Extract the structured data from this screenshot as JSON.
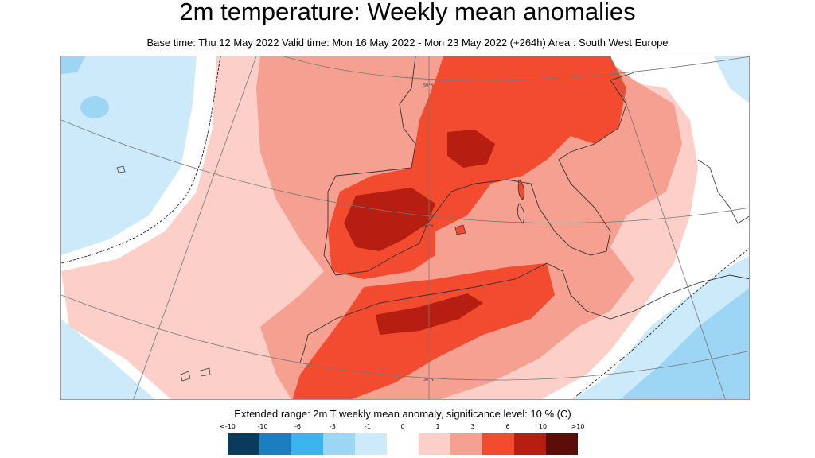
{
  "header": {
    "title": "2m temperature: Weekly mean anomalies",
    "subtitle": "Base time: Thu 12 May 2022 Valid time: Mon 16 May 2022 - Mon 23 May 2022 (+264h) Area : South West Europe"
  },
  "map": {
    "grid_labels": [
      "50°N",
      "40°N",
      "30°N"
    ]
  },
  "legend": {
    "title": "Extended range: 2m T weekly mean anomaly, significance level: 10 % (C)",
    "ticks": [
      "<-10",
      "-10",
      "-6",
      "-3",
      "-1",
      "0",
      "1",
      "3",
      "6",
      "10",
      ">10"
    ],
    "colors": [
      "#0a3a5c",
      "#1a7fc1",
      "#3bb4ee",
      "#9dd6f5",
      "#cdeafa",
      "#ffffff",
      "#fcd0c8",
      "#f5a090",
      "#f24b2f",
      "#b51e10",
      "#5c0d08"
    ]
  }
}
